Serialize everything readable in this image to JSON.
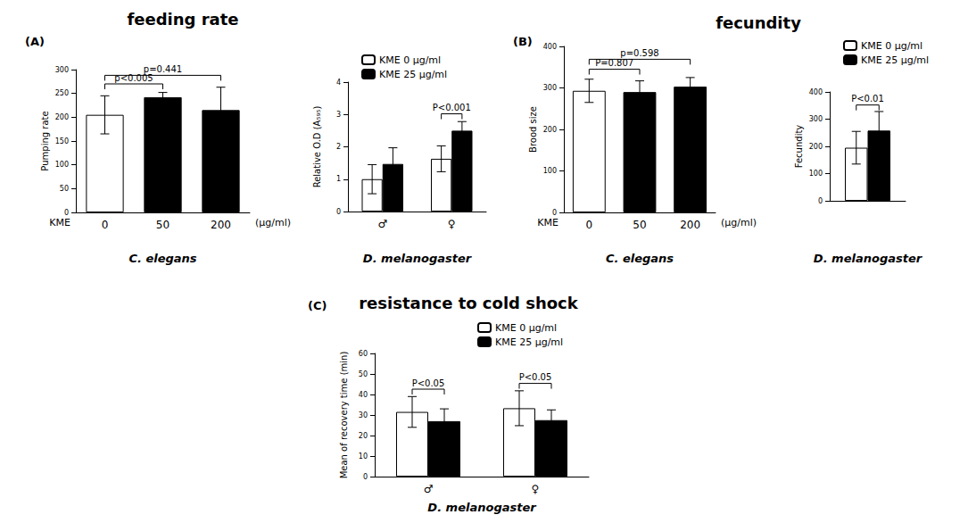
{
  "chart_data": [
    {
      "type": "bar",
      "panel_label": "(A)",
      "panel_title": "feeding rate",
      "x_prefix": "KME",
      "x_suffix": "(µg/ml)",
      "xlabel": "C. elegans",
      "ylabel": "Pumping rate",
      "categories": [
        "0",
        "50",
        "200"
      ],
      "values": [
        205,
        242,
        215
      ],
      "errors": [
        40,
        10,
        48
      ],
      "colors": [
        "#ffffff",
        "#000000",
        "#000000"
      ],
      "ylim": [
        0,
        300
      ],
      "yticks": [
        0,
        50,
        100,
        150,
        200,
        250,
        300
      ],
      "annotations": [
        {
          "text": "p<0.005",
          "from": 0,
          "to": 1
        },
        {
          "text": "p=0.441",
          "from": 0,
          "to": 2
        }
      ]
    },
    {
      "type": "bar",
      "xlabel": "D. melanogaster",
      "ylabel": "Relative O.D (A₅₉₅)",
      "categories": [
        "♂",
        "♀"
      ],
      "series": [
        {
          "name": "KME 0 µg/ml",
          "color": "#ffffff",
          "values": [
            1.0,
            1.63
          ],
          "errors": [
            0.45,
            0.4
          ]
        },
        {
          "name": "KME 25 µg/ml",
          "color": "#000000",
          "values": [
            1.47,
            2.5
          ],
          "errors": [
            0.5,
            0.28
          ]
        }
      ],
      "ylim": [
        0,
        4
      ],
      "yticks": [
        0,
        1,
        2,
        3,
        4
      ],
      "legend": "top",
      "annotations": [
        {
          "text": "P<0.001",
          "category": 1
        }
      ]
    },
    {
      "type": "bar",
      "panel_label": "(B)",
      "panel_title": "fecundity",
      "x_prefix": "KME",
      "x_suffix": "(µg/ml)",
      "xlabel": "C. elegans",
      "ylabel": "Brood size",
      "categories": [
        "0",
        "50",
        "200"
      ],
      "values": [
        293,
        290,
        303
      ],
      "errors": [
        28,
        27,
        22
      ],
      "colors": [
        "#ffffff",
        "#000000",
        "#000000"
      ],
      "ylim": [
        0,
        400
      ],
      "yticks": [
        0,
        100,
        200,
        300,
        400
      ],
      "annotations": [
        {
          "text": "P=0.807",
          "from": 0,
          "to": 1
        },
        {
          "text": "p=0.598",
          "from": 0,
          "to": 2
        }
      ]
    },
    {
      "type": "bar",
      "xlabel": "D. melanogaster",
      "ylabel": "Fecundity",
      "categories": [
        null
      ],
      "series": [
        {
          "name": "KME 0 µg/ml",
          "color": "#ffffff",
          "values": [
            195
          ],
          "errors": [
            60
          ]
        },
        {
          "name": "KME 25 µg/ml",
          "color": "#000000",
          "values": [
            258
          ],
          "errors": [
            70
          ]
        }
      ],
      "ylim": [
        0,
        400
      ],
      "yticks": [
        0,
        100,
        200,
        300,
        400
      ],
      "legend": "top",
      "annotations": [
        {
          "text": "P<0.01",
          "category": 0
        }
      ]
    },
    {
      "type": "bar",
      "panel_label": "(C)",
      "panel_title": "resistance to cold shock",
      "xlabel": "D. melanogaster",
      "ylabel": "Mean of recovery time (min)",
      "categories": [
        "♂",
        "♀"
      ],
      "series": [
        {
          "name": "KME 0 µg/ml",
          "color": "#ffffff",
          "values": [
            31.5,
            33.3
          ],
          "errors": [
            7.5,
            8.5
          ]
        },
        {
          "name": "KME 25 µg/ml",
          "color": "#000000",
          "values": [
            27,
            27.5
          ],
          "errors": [
            6,
            5
          ]
        }
      ],
      "ylim": [
        0,
        60
      ],
      "yticks": [
        0,
        10,
        20,
        30,
        40,
        50,
        60
      ],
      "legend": "top",
      "annotations": [
        {
          "text": "P<0.05",
          "category": 0
        },
        {
          "text": "P<0.05",
          "category": 1
        }
      ]
    }
  ]
}
